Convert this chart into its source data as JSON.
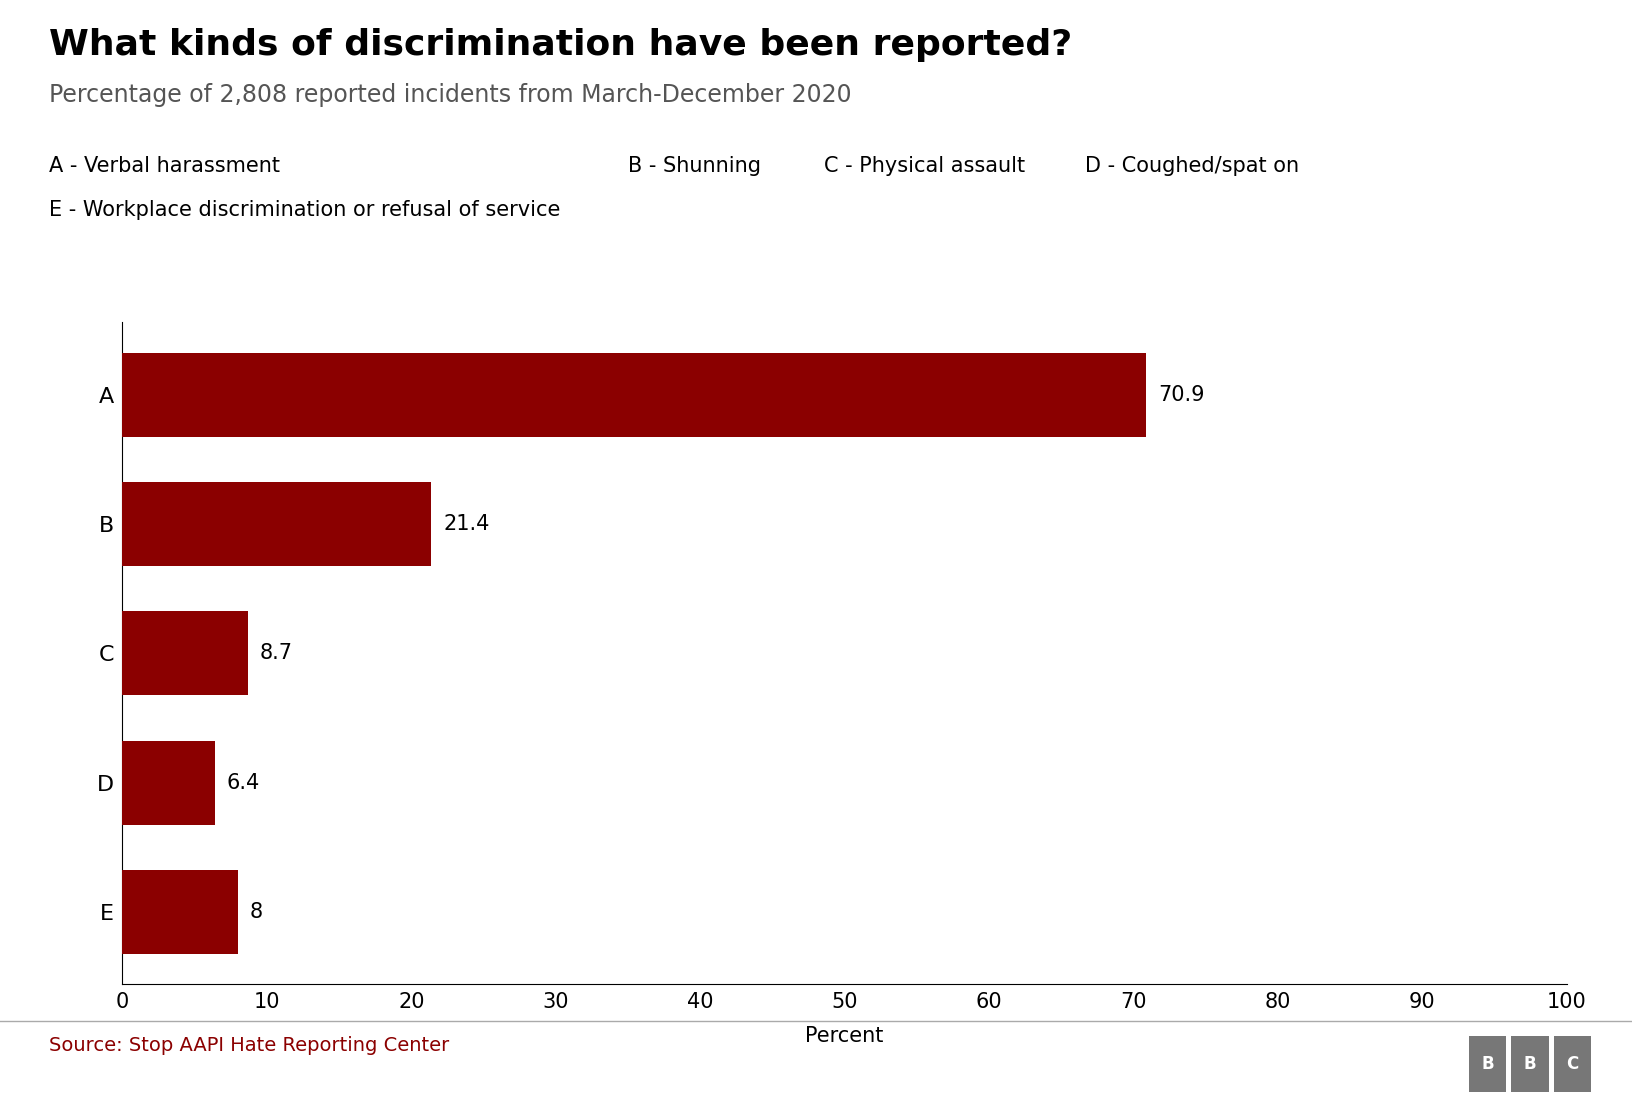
{
  "title": "What kinds of discrimination have been reported?",
  "subtitle": "Percentage of 2,808 reported incidents from March-December 2020",
  "categories": [
    "A",
    "B",
    "C",
    "D",
    "E"
  ],
  "values": [
    70.9,
    21.4,
    8.7,
    6.4,
    8.0
  ],
  "bar_color": "#8B0000",
  "xlabel": "Percent",
  "xlim": [
    0,
    100
  ],
  "xticks": [
    0,
    10,
    20,
    30,
    40,
    50,
    60,
    70,
    80,
    90,
    100
  ],
  "legend_line1_left": "A - Verbal harassment",
  "legend_line1_mid": "B - Shunning",
  "legend_line1_right1": "C - Physical assault",
  "legend_line1_right2": "D - Coughed/spat on",
  "legend_line2": "E - Workplace discrimination or refusal of service",
  "source": "Source: Stop AAPI Hate Reporting Center",
  "title_fontsize": 26,
  "subtitle_fontsize": 17,
  "legend_fontsize": 15,
  "axis_fontsize": 15,
  "bar_label_fontsize": 15,
  "source_fontsize": 14,
  "xlabel_fontsize": 15,
  "background_color": "#ffffff",
  "text_color": "#000000",
  "subtitle_color": "#555555",
  "source_color": "#8B0000"
}
